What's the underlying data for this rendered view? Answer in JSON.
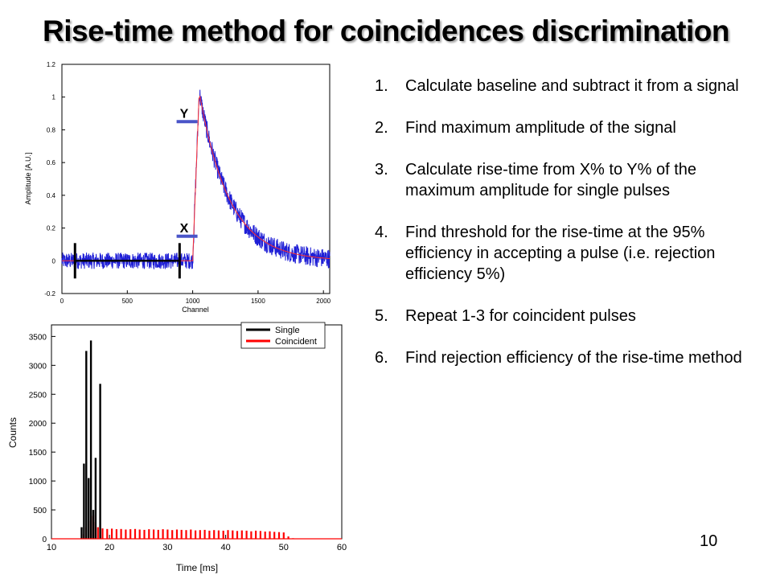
{
  "title": "Rise-time method for coincidences discrimination",
  "steps": [
    {
      "num": "1.",
      "text": "Calculate baseline and subtract it from a signal"
    },
    {
      "num": "2.",
      "text": "Find maximum amplitude of the signal"
    },
    {
      "num": "3.",
      "text": "Calculate rise-time from X% to Y% of the maximum amplitude for single pulses"
    },
    {
      "num": "4.",
      "text": "Find threshold for the rise-time at the 95% efficiency in accepting a pulse (i.e. rejection efficiency 5%)"
    },
    {
      "num": "5.",
      "text": "Repeat 1-3 for coincident pulses"
    },
    {
      "num": "6.",
      "text": "Find rejection efficiency of the rise-time method"
    }
  ],
  "slide_number": "10",
  "chart_data": [
    {
      "type": "line",
      "xlabel": "Channel",
      "ylabel": "Amplitude [A.U.]",
      "xlim": [
        0,
        2048
      ],
      "ylim": [
        -0.2,
        1.2
      ],
      "xticks": [
        "0",
        "500",
        "1000",
        "1500",
        "2000"
      ],
      "yticks": [
        "-0.2",
        "0",
        "0.2",
        "0.4",
        "0.6",
        "0.8",
        "1",
        "1.2"
      ],
      "series_color": "#1f1fd6",
      "annotations": {
        "x_label": "X",
        "y_label": "Y",
        "x_level": 0.15,
        "y_level": 0.85
      },
      "baseline_interval": [
        100,
        900
      ],
      "pulse": {
        "baseline": 0.0,
        "rise_start": 1000,
        "peak_channel": 1050,
        "peak_amplitude": 1.03
      }
    },
    {
      "type": "bar",
      "xlabel": "Time [ms]",
      "ylabel": "Counts",
      "xlim": [
        10,
        60
      ],
      "ylim": [
        0,
        3700
      ],
      "xticks": [
        "10",
        "20",
        "30",
        "40",
        "50",
        "60"
      ],
      "yticks": [
        "0",
        "500",
        "1000",
        "1500",
        "2000",
        "2500",
        "3000",
        "3500"
      ],
      "legend": {
        "placement": "top-right"
      },
      "series": [
        {
          "name": "Single",
          "color": "#000000",
          "x": [
            15.2,
            15.6,
            16.0,
            16.4,
            16.8,
            17.2,
            17.6,
            18.4
          ],
          "values": [
            200,
            1300,
            3250,
            1050,
            3430,
            500,
            1400,
            2680
          ]
        },
        {
          "name": "Coincident",
          "color": "#ff0000",
          "x": [
            15.6,
            16.0,
            16.4,
            16.8,
            17.2,
            17.6,
            18.0,
            18.8,
            19.6,
            20.4,
            21.2,
            22.0,
            22.8,
            23.6,
            24.4,
            25.2,
            26.0,
            26.8,
            27.6,
            28.4,
            29.2,
            30.0,
            30.8,
            31.6,
            32.4,
            33.2,
            34.0,
            34.8,
            35.6,
            36.4,
            37.2,
            38.0,
            38.8,
            39.6,
            40.4,
            41.2,
            42.0,
            42.8,
            43.6,
            44.4,
            45.2,
            46.0,
            46.8,
            47.6,
            48.4,
            49.2,
            50.0,
            50.8,
            51.6
          ],
          "values": [
            80,
            200,
            310,
            390,
            410,
            290,
            200,
            180,
            170,
            175,
            165,
            170,
            160,
            165,
            170,
            160,
            155,
            165,
            160,
            155,
            165,
            160,
            150,
            160,
            155,
            150,
            160,
            145,
            150,
            155,
            140,
            150,
            145,
            140,
            150,
            145,
            135,
            145,
            140,
            130,
            140,
            135,
            125,
            130,
            120,
            115,
            110,
            40,
            10
          ]
        }
      ]
    }
  ]
}
